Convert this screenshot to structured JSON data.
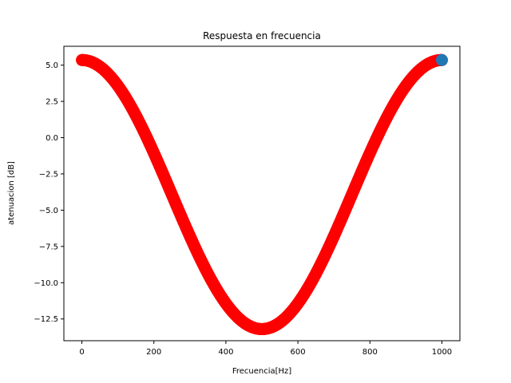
{
  "chart_data": {
    "type": "scatter",
    "title": "Respuesta en frecuencia",
    "xlabel": "Frecuencia[Hz]",
    "ylabel": "atenuacion [dB]",
    "xlim": [
      -50,
      1050
    ],
    "ylim": [
      -14.0,
      6.3
    ],
    "x_ticks": [
      0,
      200,
      400,
      600,
      800,
      1000
    ],
    "x_tick_labels": [
      "0",
      "200",
      "400",
      "600",
      "800",
      "1000"
    ],
    "y_ticks": [
      5.0,
      2.5,
      0.0,
      -2.5,
      -5.0,
      -7.5,
      -10.0,
      -12.5
    ],
    "y_tick_labels": [
      "5.0",
      "2.5",
      "0.0",
      "−2.5",
      "−5.0",
      "−7.5",
      "−10.0",
      "−12.5"
    ],
    "grid": false,
    "series": [
      {
        "color": "#ff0000",
        "marker": "circle",
        "x_range": [
          0,
          1000
        ],
        "x_step": 1,
        "model": "cosine",
        "max_db": 5.35,
        "min_db": -13.2,
        "period_hz": 1000
      },
      {
        "color": "#1f77b4",
        "marker": "circle",
        "points": [
          [
            1000,
            5.35
          ]
        ]
      }
    ]
  }
}
